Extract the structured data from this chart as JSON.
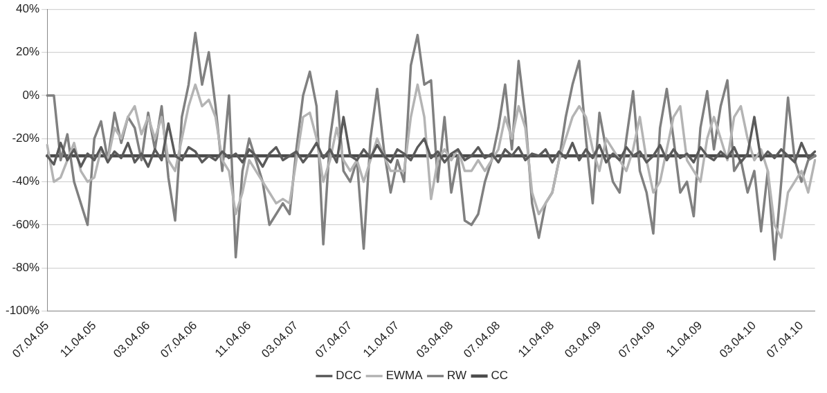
{
  "chart_data": {
    "type": "line",
    "categories": [
      "07.04.05",
      null,
      null,
      null,
      null,
      null,
      null,
      "11.04.05",
      null,
      null,
      null,
      null,
      null,
      null,
      null,
      "03.04.06",
      null,
      null,
      null,
      null,
      null,
      null,
      "07.04.06",
      null,
      null,
      null,
      null,
      null,
      null,
      null,
      "11.04.06",
      null,
      null,
      null,
      null,
      null,
      null,
      "03.04.07",
      null,
      null,
      null,
      null,
      null,
      null,
      null,
      "07.04.07",
      null,
      null,
      null,
      null,
      null,
      null,
      "11.04.07",
      null,
      null,
      null,
      null,
      null,
      null,
      null,
      "03.04.08",
      null,
      null,
      null,
      null,
      null,
      null,
      "07.04.08",
      null,
      null,
      null,
      null,
      null,
      null,
      null,
      "11.04.08",
      null,
      null,
      null,
      null,
      null,
      null,
      "03.04.09",
      null,
      null,
      null,
      null,
      null,
      null,
      null,
      "07.04.09",
      null,
      null,
      null,
      null,
      null,
      null,
      "11.04.09",
      null,
      null,
      null,
      null,
      null,
      null,
      null,
      "03.04.10",
      null,
      null,
      null,
      null,
      null,
      null,
      "07.04.10",
      null,
      null
    ],
    "series": [
      {
        "name": "DCC",
        "color": "#5a5a5a",
        "values": [
          -28,
          -32,
          -22,
          -30,
          -25,
          -33,
          -27,
          -30,
          -24,
          -31,
          -26,
          -29,
          -22,
          -31,
          -27,
          -33,
          -25,
          -30,
          -13,
          -28,
          -30,
          -24,
          -26,
          -31,
          -28,
          -30,
          -26,
          -29,
          -27,
          -31,
          -25,
          -28,
          -33,
          -27,
          -24,
          -30,
          -28,
          -26,
          -31,
          -27,
          -22,
          -29,
          -25,
          -31,
          -10,
          -28,
          -30,
          -25,
          -29,
          -23,
          -28,
          -31,
          -25,
          -27,
          -30,
          -24,
          -20,
          -29,
          -26,
          -31,
          -27,
          -25,
          -30,
          -28,
          -24,
          -29,
          -27,
          -31,
          -25,
          -28,
          -24,
          -30,
          -27,
          -28,
          -25,
          -31,
          -26,
          -29,
          -22,
          -30,
          -25,
          -29,
          -23,
          -31,
          -27,
          -30,
          -24,
          -28,
          -26,
          -31,
          -28,
          -23,
          -30,
          -25,
          -29,
          -27,
          -31,
          -24,
          -28,
          -30,
          -26,
          -29,
          -24,
          -31,
          -27,
          -10,
          -30,
          -26,
          -29,
          -25,
          -28,
          -31,
          -22,
          -29,
          -26
        ]
      },
      {
        "name": "EWMA",
        "color": "#b4b4b4",
        "values": [
          -23,
          -40,
          -38,
          -30,
          -22,
          -35,
          -40,
          -38,
          -25,
          -30,
          -15,
          -20,
          -10,
          -5,
          -18,
          -10,
          -20,
          -10,
          -30,
          -35,
          -20,
          -5,
          5,
          -5,
          -2,
          -10,
          -30,
          -35,
          -55,
          -45,
          -30,
          -35,
          -40,
          -45,
          -50,
          -48,
          -50,
          -30,
          -10,
          -8,
          -20,
          -40,
          -30,
          -15,
          -30,
          -35,
          -30,
          -40,
          -30,
          -20,
          -28,
          -35,
          -35,
          -35,
          -10,
          5,
          -10,
          -48,
          -30,
          -25,
          -30,
          -25,
          -35,
          -35,
          -30,
          -35,
          -30,
          -25,
          -10,
          -20,
          -5,
          -15,
          -45,
          -55,
          -50,
          -45,
          -30,
          -20,
          -10,
          -5,
          -10,
          -25,
          -35,
          -20,
          -25,
          -30,
          -35,
          -25,
          -10,
          -30,
          -45,
          -40,
          -25,
          -10,
          -5,
          -30,
          -35,
          -40,
          -20,
          -10,
          -20,
          -30,
          -10,
          -5,
          -20,
          -30,
          -25,
          -35,
          -60,
          -66,
          -45,
          -40,
          -35,
          -45,
          -30
        ]
      },
      {
        "name": "RW",
        "color": "#808080",
        "values": [
          0,
          0,
          -30,
          -18,
          -40,
          -50,
          -60,
          -20,
          -12,
          -30,
          -8,
          -22,
          -10,
          -15,
          -30,
          -8,
          -25,
          -5,
          -38,
          -58,
          -10,
          5,
          29,
          5,
          20,
          -5,
          -35,
          0,
          -75,
          -35,
          -20,
          -30,
          -40,
          -60,
          -55,
          -50,
          -55,
          -25,
          0,
          11,
          -5,
          -69,
          -20,
          2,
          -35,
          -40,
          -30,
          -71,
          -20,
          3,
          -25,
          -45,
          -30,
          -40,
          14,
          28,
          5,
          7,
          -40,
          -10,
          -45,
          -28,
          -58,
          -60,
          -55,
          -40,
          -30,
          -15,
          5,
          -25,
          16,
          -10,
          -50,
          -66,
          -50,
          -45,
          -30,
          -10,
          5,
          16,
          -20,
          -50,
          -8,
          -25,
          -40,
          -45,
          -20,
          2,
          -35,
          -45,
          -64,
          -15,
          3,
          -20,
          -45,
          -40,
          -56,
          -15,
          2,
          -25,
          -5,
          7,
          -35,
          -30,
          -45,
          -35,
          -63,
          -35,
          -76,
          -40,
          -1,
          -30,
          -40,
          -30,
          -28
        ]
      },
      {
        "name": "CC",
        "color": "#4a4a4a",
        "values": [
          -28,
          -28,
          -28,
          -28,
          -28,
          -28,
          -28,
          -28,
          -28,
          -28,
          -28,
          -28,
          -28,
          -28,
          -28,
          -28,
          -28,
          -28,
          -28,
          -28,
          -28,
          -28,
          -28,
          -28,
          -28,
          -28,
          -28,
          -28,
          -28,
          -28,
          -28,
          -28,
          -28,
          -28,
          -28,
          -28,
          -28,
          -28,
          -28,
          -28,
          -28,
          -28,
          -28,
          -28,
          -28,
          -28,
          -28,
          -28,
          -28,
          -28,
          -28,
          -28,
          -28,
          -28,
          -28,
          -28,
          -28,
          -28,
          -28,
          -28,
          -28,
          -28,
          -28,
          -28,
          -28,
          -28,
          -28,
          -28,
          -28,
          -28,
          -28,
          -28,
          -28,
          -28,
          -28,
          -28,
          -28,
          -28,
          -28,
          -28,
          -28,
          -28,
          -28,
          -28,
          -28,
          -28,
          -28,
          -28,
          -28,
          -28,
          -28,
          -28,
          -28,
          -28,
          -28,
          -28,
          -28,
          -28,
          -28,
          -28,
          -28,
          -28,
          -28,
          -28,
          -28,
          -28,
          -28,
          -28,
          -28,
          -28,
          -28,
          -28,
          -28,
          -28,
          -28
        ]
      }
    ],
    "ylim": [
      -100,
      40
    ],
    "yticks": [
      {
        "value": -100,
        "label": "-100%"
      },
      {
        "value": -80,
        "label": "-80%"
      },
      {
        "value": -60,
        "label": "-60%"
      },
      {
        "value": -40,
        "label": "-40%"
      },
      {
        "value": -20,
        "label": "-20%"
      },
      {
        "value": 0,
        "label": "0%"
      },
      {
        "value": 20,
        "label": "20%"
      },
      {
        "value": 40,
        "label": "40%"
      }
    ],
    "grid": "y",
    "legend": "bottom",
    "marker": "none",
    "line_style": "solid"
  }
}
